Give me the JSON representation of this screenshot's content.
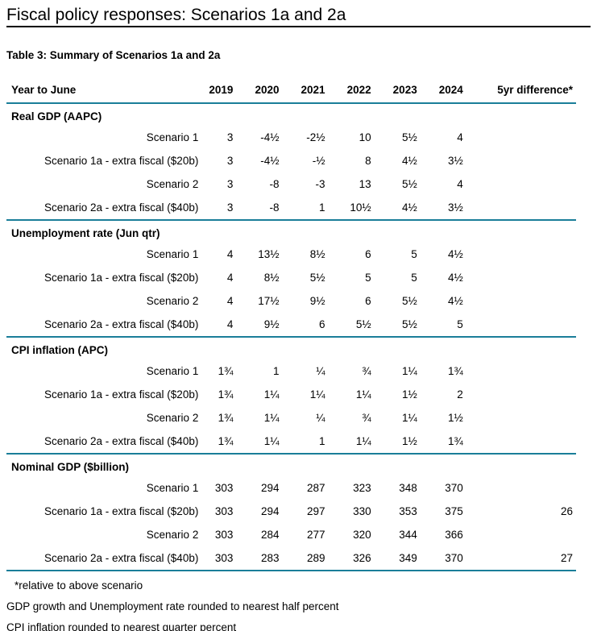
{
  "page": {
    "title": "Fiscal policy responses: Scenarios 1a and 2a"
  },
  "colors": {
    "rule_teal": "#1a7e99",
    "rule_black": "#000000"
  },
  "table": {
    "caption": "Table 3: Summary of Scenarios 1a and 2a",
    "columns": [
      "Year to June",
      "2019",
      "2020",
      "2021",
      "2022",
      "2023",
      "2024",
      "5yr difference*"
    ],
    "sections": [
      {
        "header": "Real GDP (AAPC)",
        "rows": [
          {
            "label": "Scenario 1",
            "values": [
              "3",
              "-4½",
              "-2½",
              "10",
              "5½",
              "4"
            ],
            "diff": ""
          },
          {
            "label": "Scenario 1a - extra fiscal ($20b)",
            "values": [
              "3",
              "-4½",
              "-½",
              "8",
              "4½",
              "3½"
            ],
            "diff": ""
          },
          {
            "label": "Scenario 2",
            "values": [
              "3",
              "-8",
              "-3",
              "13",
              "5½",
              "4"
            ],
            "diff": ""
          },
          {
            "label": "Scenario 2a - extra fiscal ($40b)",
            "values": [
              "3",
              "-8",
              "1",
              "10½",
              "4½",
              "3½"
            ],
            "diff": ""
          }
        ]
      },
      {
        "header": "Unemployment rate (Jun qtr)",
        "rows": [
          {
            "label": "Scenario 1",
            "values": [
              "4",
              "13½",
              "8½",
              "6",
              "5",
              "4½"
            ],
            "diff": ""
          },
          {
            "label": "Scenario 1a - extra fiscal ($20b)",
            "values": [
              "4",
              "8½",
              "5½",
              "5",
              "5",
              "4½"
            ],
            "diff": ""
          },
          {
            "label": "Scenario 2",
            "values": [
              "4",
              "17½",
              "9½",
              "6",
              "5½",
              "4½"
            ],
            "diff": ""
          },
          {
            "label": "Scenario 2a - extra fiscal ($40b)",
            "values": [
              "4",
              "9½",
              "6",
              "5½",
              "5½",
              "5"
            ],
            "diff": ""
          }
        ]
      },
      {
        "header": "CPI inflation (APC)",
        "rows": [
          {
            "label": "Scenario 1",
            "values": [
              "1¾",
              "1",
              "¼",
              "¾",
              "1¼",
              "1¾"
            ],
            "diff": ""
          },
          {
            "label": "Scenario 1a - extra fiscal ($20b)",
            "values": [
              "1¾",
              "1¼",
              "1¼",
              "1¼",
              "1½",
              "2"
            ],
            "diff": ""
          },
          {
            "label": "Scenario 2",
            "values": [
              "1¾",
              "1¼",
              "¼",
              "¾",
              "1¼",
              "1½"
            ],
            "diff": ""
          },
          {
            "label": "Scenario 2a - extra fiscal ($40b)",
            "values": [
              "1¾",
              "1¼",
              "1",
              "1¼",
              "1½",
              "1¾"
            ],
            "diff": ""
          }
        ]
      },
      {
        "header": "Nominal GDP ($billion)",
        "rows": [
          {
            "label": "Scenario 1",
            "values": [
              "303",
              "294",
              "287",
              "323",
              "348",
              "370"
            ],
            "diff": ""
          },
          {
            "label": "Scenario 1a - extra fiscal ($20b)",
            "values": [
              "303",
              "294",
              "297",
              "330",
              "353",
              "375"
            ],
            "diff": "26"
          },
          {
            "label": "Scenario 2",
            "values": [
              "303",
              "284",
              "277",
              "320",
              "344",
              "366"
            ],
            "diff": ""
          },
          {
            "label": "Scenario 2a - extra fiscal ($40b)",
            "values": [
              "303",
              "283",
              "289",
              "326",
              "349",
              "370"
            ],
            "diff": "27"
          }
        ]
      }
    ],
    "footnotes": [
      "*relative to above scenario",
      "GDP growth and Unemployment rate rounded to nearest half percent",
      "CPI inflation rounded to nearest quarter percent"
    ]
  }
}
